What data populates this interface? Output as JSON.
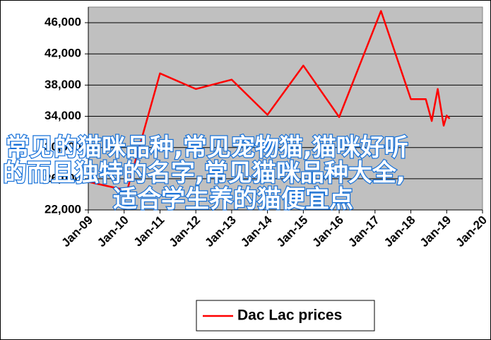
{
  "chart_data": {
    "type": "line",
    "x": [
      "Jan-09",
      "Feb-10",
      "Jan-11",
      "Jan-12",
      "Jan-13",
      "Jan-14",
      "Jan-15",
      "Jan-16",
      "Mar-17",
      "Jan-18",
      "Jun-18",
      "Aug-18",
      "Oct-18",
      "Dec-18",
      "Jan-19",
      "Feb-19"
    ],
    "series": [
      {
        "name": "Dac Lac prices",
        "color": "#ff0000",
        "values": [
          25600,
          24500,
          39500,
          37500,
          38700,
          34200,
          40500,
          33900,
          47500,
          36200,
          36200,
          33400,
          37500,
          32800,
          34100,
          33700
        ]
      }
    ],
    "xlim": [
      "Jan-09",
      "Jan-20"
    ],
    "xticks": [
      "Jan-09",
      "Jan-10",
      "Jan-11",
      "Jan-12",
      "Jan-13",
      "Jan-14",
      "Jan-15",
      "Jan-16",
      "Jan-17",
      "Jan-18",
      "Jan-19",
      "Jan-20"
    ],
    "ylim": [
      22000,
      48000
    ],
    "yticks": [
      {
        "value": 22000,
        "label": "22,000"
      },
      {
        "value": 26000,
        "label": "26,000"
      },
      {
        "value": 30000,
        "label": "30,000"
      },
      {
        "value": 34000,
        "label": "34,000"
      },
      {
        "value": 38000,
        "label": "38,000"
      },
      {
        "value": 42000,
        "label": "42,000"
      },
      {
        "value": 46000,
        "label": "46,000"
      }
    ],
    "grid": true,
    "plot_background": "#c0c0c0",
    "legend": "bottom"
  },
  "overlay_text": [
    "常见的猫咪品种,常见宠物猫,猫咪好听",
    "的而且独特的名字,常见猫咪品种大全,",
    "适合学生养的猫便宜点"
  ]
}
